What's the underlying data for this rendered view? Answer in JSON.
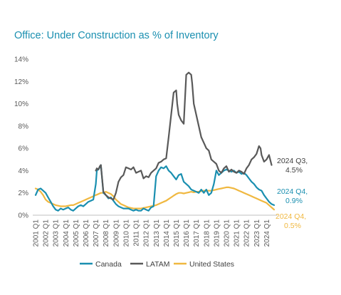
{
  "chart_data": {
    "type": "line",
    "title": "Office: Under Construction as % of Inventory",
    "xlabel": "",
    "ylabel": "",
    "ylim": [
      0,
      14
    ],
    "y_ticks": [
      "0%",
      "2%",
      "4%",
      "6%",
      "8%",
      "10%",
      "12%",
      "14%"
    ],
    "y_tick_values": [
      0,
      2,
      4,
      6,
      8,
      10,
      12,
      14
    ],
    "x_ticks": [
      "2001 Q1",
      "2002 Q1",
      "2003 Q1",
      "2004 Q1",
      "2005 Q1",
      "2006 Q1",
      "2007 Q1",
      "2008 Q1",
      "2009 Q1",
      "2010 Q1",
      "2011 Q1",
      "2012 Q1",
      "2013 Q1",
      "2014 Q1",
      "2015 Q1",
      "2016 Q1",
      "2017 Q1",
      "2018 Q1",
      "2019 Q1",
      "2020 Q1",
      "2021 Q1",
      "2022 Q1",
      "2023 Q1",
      "2024 Q1"
    ],
    "x_range": [
      2001.0,
      2024.75
    ],
    "grid": false,
    "legend_position": "bottom",
    "colors": {
      "Canada": "#1a8fb0",
      "LATAM": "#595959",
      "United States": "#f0b840",
      "title": "#1a8fb0"
    },
    "series": [
      {
        "name": "Canada",
        "x": [
          2001.0,
          2001.25,
          2001.5,
          2001.75,
          2002.0,
          2002.25,
          2002.5,
          2002.75,
          2003.0,
          2003.25,
          2003.5,
          2003.75,
          2004.0,
          2004.25,
          2004.5,
          2004.75,
          2005.0,
          2005.25,
          2005.5,
          2005.75,
          2006.0,
          2006.25,
          2006.5,
          2006.75,
          2007.0,
          2007.1,
          2007.25,
          2007.4,
          2007.5,
          2007.75,
          2008.0,
          2008.25,
          2008.5,
          2008.75,
          2009.0,
          2009.25,
          2009.5,
          2009.75,
          2010.0,
          2010.25,
          2010.5,
          2010.75,
          2011.0,
          2011.25,
          2011.5,
          2011.75,
          2012.0,
          2012.25,
          2012.5,
          2012.75,
          2013.0,
          2013.25,
          2013.5,
          2013.75,
          2014.0,
          2014.25,
          2014.5,
          2014.75,
          2015.0,
          2015.25,
          2015.5,
          2015.75,
          2016.0,
          2016.25,
          2016.5,
          2016.75,
          2017.0,
          2017.25,
          2017.5,
          2017.75,
          2018.0,
          2018.25,
          2018.5,
          2018.75,
          2019.0,
          2019.25,
          2019.5,
          2019.75,
          2020.0,
          2020.25,
          2020.5,
          2020.75,
          2021.0,
          2021.25,
          2021.5,
          2021.75,
          2022.0,
          2022.25,
          2022.5,
          2022.75,
          2023.0,
          2023.25,
          2023.5,
          2023.75,
          2024.0,
          2024.25,
          2024.5,
          2024.75
        ],
        "y": [
          1.8,
          2.3,
          2.4,
          2.2,
          2.0,
          1.6,
          1.2,
          0.8,
          0.5,
          0.4,
          0.6,
          0.5,
          0.6,
          0.7,
          0.5,
          0.4,
          0.6,
          0.8,
          0.9,
          0.8,
          1.0,
          1.2,
          1.3,
          1.4,
          2.8,
          4.0,
          4.1,
          4.3,
          4.5,
          2.0,
          1.8,
          1.5,
          1.6,
          1.3,
          1.0,
          0.8,
          0.7,
          0.6,
          0.6,
          0.6,
          0.5,
          0.4,
          0.5,
          0.4,
          0.4,
          0.6,
          0.5,
          0.4,
          0.7,
          0.8,
          3.5,
          4.0,
          4.3,
          4.2,
          4.4,
          4.0,
          3.8,
          3.5,
          3.2,
          3.6,
          3.7,
          3.0,
          2.8,
          2.6,
          2.3,
          2.2,
          2.1,
          2.0,
          2.3,
          2.0,
          2.3,
          1.8,
          2.0,
          2.8,
          4.0,
          3.6,
          3.8,
          4.0,
          4.1,
          4.0,
          3.9,
          4.0,
          3.8,
          3.9,
          3.7,
          3.8,
          3.6,
          3.3,
          3.0,
          2.8,
          2.5,
          2.3,
          2.2,
          1.8,
          1.5,
          1.2,
          1.0,
          0.9
        ]
      },
      {
        "name": "LATAM",
        "x": [
          2007.0,
          2007.1,
          2007.25,
          2007.4,
          2007.5,
          2007.75,
          2008.0,
          2008.25,
          2008.5,
          2008.75,
          2009.0,
          2009.25,
          2009.5,
          2009.75,
          2010.0,
          2010.25,
          2010.5,
          2010.75,
          2011.0,
          2011.25,
          2011.5,
          2011.75,
          2012.0,
          2012.25,
          2012.5,
          2012.75,
          2013.0,
          2013.25,
          2013.5,
          2013.75,
          2014.0,
          2014.25,
          2014.5,
          2014.75,
          2015.0,
          2015.1,
          2015.25,
          2015.5,
          2015.75,
          2016.0,
          2016.25,
          2016.5,
          2016.6,
          2016.75,
          2017.0,
          2017.25,
          2017.5,
          2017.75,
          2018.0,
          2018.25,
          2018.5,
          2018.75,
          2019.0,
          2019.25,
          2019.5,
          2019.75,
          2020.0,
          2020.25,
          2020.5,
          2020.75,
          2021.0,
          2021.25,
          2021.5,
          2021.75,
          2022.0,
          2022.25,
          2022.5,
          2022.75,
          2023.0,
          2023.25,
          2023.4,
          2023.5,
          2023.75,
          2024.0,
          2024.25,
          2024.5
        ],
        "y": [
          4.0,
          4.2,
          4.1,
          4.4,
          4.5,
          2.1,
          1.8,
          1.6,
          1.5,
          1.4,
          2.0,
          3.0,
          3.4,
          3.6,
          4.3,
          4.2,
          4.1,
          4.3,
          3.8,
          3.9,
          4.0,
          3.3,
          3.5,
          3.4,
          3.8,
          4.0,
          4.2,
          4.7,
          4.8,
          5.0,
          5.1,
          7.0,
          9.0,
          11.0,
          11.2,
          10.0,
          9.0,
          8.5,
          8.2,
          12.6,
          12.8,
          12.6,
          11.8,
          10.0,
          9.0,
          8.0,
          7.0,
          6.5,
          6.0,
          5.8,
          5.0,
          4.8,
          4.6,
          4.0,
          3.8,
          4.2,
          4.4,
          3.9,
          4.1,
          3.9,
          3.8,
          4.0,
          3.9,
          3.7,
          4.2,
          4.5,
          5.0,
          5.2,
          5.5,
          6.2,
          6.0,
          5.4,
          4.8,
          5.0,
          5.4,
          4.5
        ]
      },
      {
        "name": "United States",
        "x": [
          2001.0,
          2001.25,
          2001.5,
          2001.75,
          2002.0,
          2002.25,
          2002.5,
          2002.75,
          2003.0,
          2003.25,
          2003.5,
          2003.75,
          2004.0,
          2004.25,
          2004.5,
          2004.75,
          2005.0,
          2005.25,
          2005.5,
          2005.75,
          2006.0,
          2006.25,
          2006.5,
          2006.75,
          2007.0,
          2007.25,
          2007.5,
          2007.75,
          2008.0,
          2008.25,
          2008.5,
          2008.75,
          2009.0,
          2009.25,
          2009.5,
          2009.75,
          2010.0,
          2010.25,
          2010.5,
          2010.75,
          2011.0,
          2011.25,
          2011.5,
          2011.75,
          2012.0,
          2012.25,
          2012.5,
          2012.75,
          2013.0,
          2013.25,
          2013.5,
          2013.75,
          2014.0,
          2014.25,
          2014.5,
          2014.75,
          2015.0,
          2015.25,
          2015.5,
          2015.75,
          2016.0,
          2016.25,
          2016.5,
          2016.75,
          2017.0,
          2017.25,
          2017.5,
          2017.75,
          2018.0,
          2018.25,
          2018.5,
          2018.75,
          2019.0,
          2019.25,
          2019.5,
          2019.75,
          2020.0,
          2020.25,
          2020.5,
          2020.75,
          2021.0,
          2021.25,
          2021.5,
          2021.75,
          2022.0,
          2022.25,
          2022.5,
          2022.75,
          2023.0,
          2023.25,
          2023.5,
          2023.75,
          2024.0,
          2024.25,
          2024.5,
          2024.75
        ],
        "y": [
          2.4,
          2.3,
          2.1,
          1.8,
          1.4,
          1.2,
          1.1,
          1.0,
          0.9,
          0.85,
          0.8,
          0.8,
          0.8,
          0.85,
          0.9,
          0.9,
          1.0,
          1.1,
          1.2,
          1.3,
          1.4,
          1.5,
          1.6,
          1.7,
          1.8,
          1.9,
          2.0,
          2.0,
          2.1,
          2.0,
          1.9,
          1.7,
          1.4,
          1.2,
          1.0,
          0.9,
          0.8,
          0.7,
          0.65,
          0.6,
          0.6,
          0.6,
          0.6,
          0.65,
          0.7,
          0.75,
          0.8,
          0.85,
          0.9,
          1.0,
          1.1,
          1.2,
          1.3,
          1.45,
          1.6,
          1.75,
          1.9,
          2.0,
          2.0,
          1.95,
          2.0,
          2.05,
          2.1,
          2.05,
          2.1,
          2.1,
          2.15,
          2.2,
          2.2,
          2.2,
          2.2,
          2.25,
          2.3,
          2.35,
          2.4,
          2.45,
          2.5,
          2.5,
          2.45,
          2.4,
          2.3,
          2.2,
          2.1,
          2.0,
          1.9,
          1.8,
          1.7,
          1.6,
          1.5,
          1.4,
          1.3,
          1.2,
          1.1,
          0.9,
          0.7,
          0.5
        ]
      }
    ],
    "annotations": [
      {
        "series": "LATAM",
        "line1": "2024 Q3,",
        "line2": "4.5%"
      },
      {
        "series": "Canada",
        "line1": "2024 Q4,",
        "line2": "0.9%"
      },
      {
        "series": "United States",
        "line1": "2024 Q4,",
        "line2": "0.5%"
      }
    ]
  }
}
